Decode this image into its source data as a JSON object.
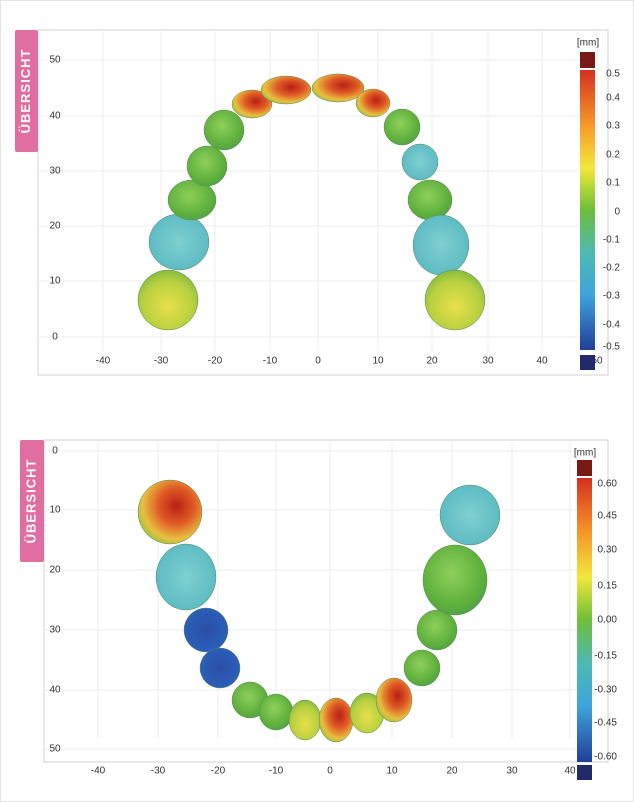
{
  "panels": [
    {
      "tab": "ÜBERSICHT",
      "y_ticks": [
        "50",
        "40",
        "30",
        "20",
        "10",
        "0"
      ],
      "x_ticks": [
        "-40",
        "-30",
        "-20",
        "-10",
        "0",
        "10",
        "20",
        "30",
        "40",
        "50"
      ],
      "unit": "[mm]",
      "scale_ticks": [
        "0.5",
        "0.4",
        "0.3",
        "0.2",
        "0.1",
        "0",
        "-0.1",
        "-0.2",
        "-0.3",
        "-0.4",
        "-0.5"
      ]
    },
    {
      "tab": "ÜBERSICHT",
      "y_ticks": [
        "0",
        "10",
        "20",
        "30",
        "40",
        "50"
      ],
      "x_ticks": [
        "-40",
        "-30",
        "-20",
        "-10",
        "0",
        "10",
        "20",
        "30",
        "40"
      ],
      "unit": "[mm]",
      "scale_ticks": [
        "0.60",
        "0.45",
        "0.30",
        "0.15",
        "0.00",
        "-0.15",
        "-0.30",
        "-0.45",
        "-0.60"
      ]
    }
  ]
}
